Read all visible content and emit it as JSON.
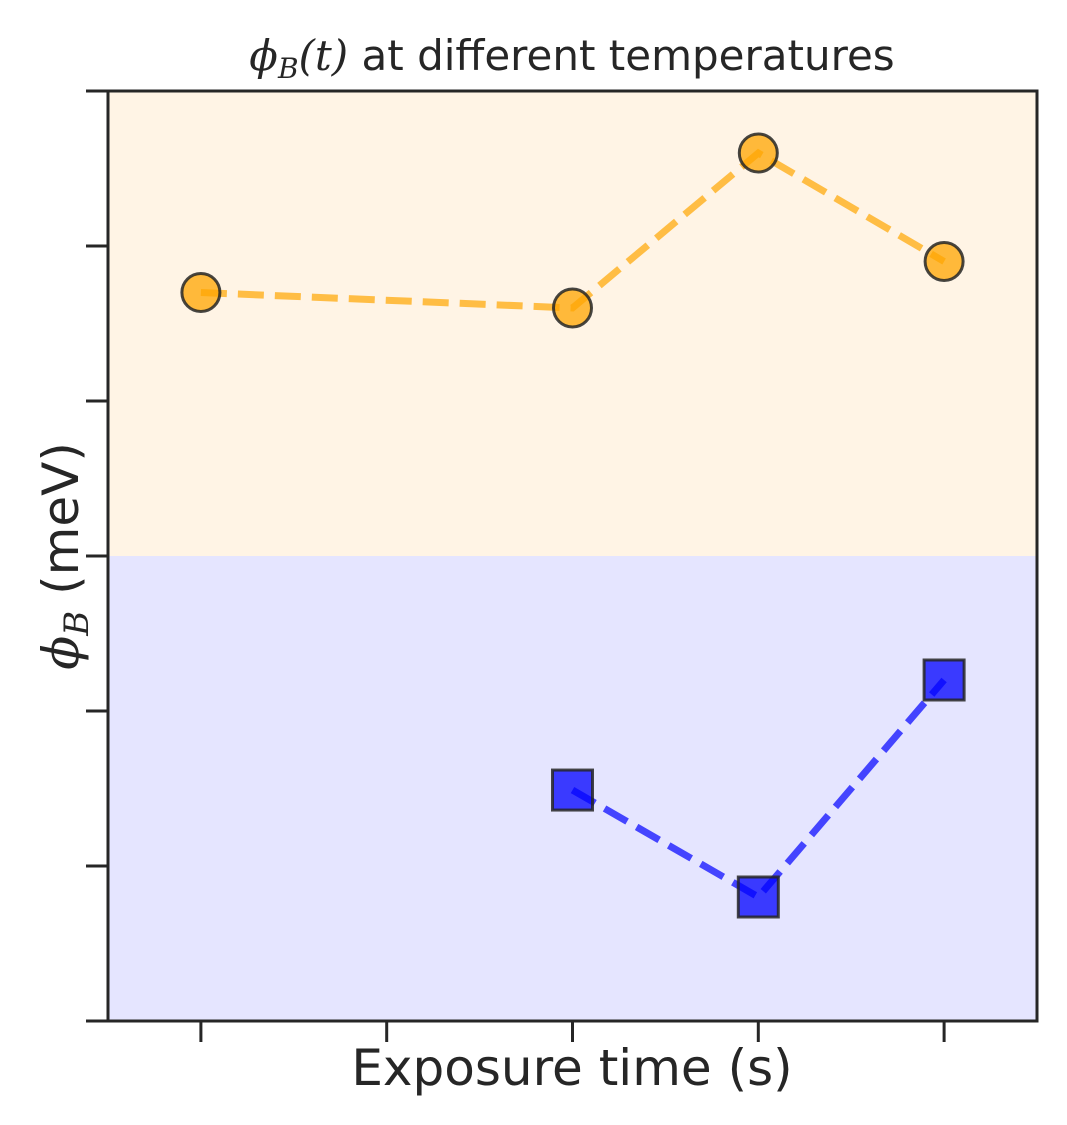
{
  "chart_data": {
    "type": "line",
    "title": "ϕB(t) at different temperatures",
    "title_parts": {
      "math_main": "ϕ",
      "math_sub": "B",
      "math_arg": "(t)",
      "rest": " at different temperatures"
    },
    "xlabel": "Exposure time (s)",
    "ylabel": "ϕB (meV)",
    "ylabel_parts": {
      "math_main": "ϕ",
      "math_sub": "B",
      "rest": " (meV)"
    },
    "x_tick_labels_shown": false,
    "y_tick_labels_shown": false,
    "xlim": [
      0.5,
      5.5
    ],
    "ylim": [
      0,
      6
    ],
    "x_ticks": [
      1,
      2,
      3,
      4,
      5
    ],
    "y_ticks": [
      0,
      1,
      2,
      3,
      4,
      5,
      6
    ],
    "bands": [
      {
        "y_from": 3,
        "y_to": 6,
        "color": "#fff4e5"
      },
      {
        "y_from": 0,
        "y_to": 3,
        "color": "#e5e5ff"
      }
    ],
    "series": [
      {
        "color": "#ffa500",
        "marker": "circle",
        "linestyle": "dashed",
        "x": [
          1,
          3,
          4,
          5
        ],
        "y": [
          4.7,
          4.6,
          5.6,
          4.9
        ]
      },
      {
        "color": "#0000ff",
        "marker": "square",
        "linestyle": "dashed",
        "x": [
          3,
          4,
          5
        ],
        "y": [
          1.49,
          0.8,
          2.2
        ]
      }
    ],
    "grid": false,
    "legend": "none"
  }
}
